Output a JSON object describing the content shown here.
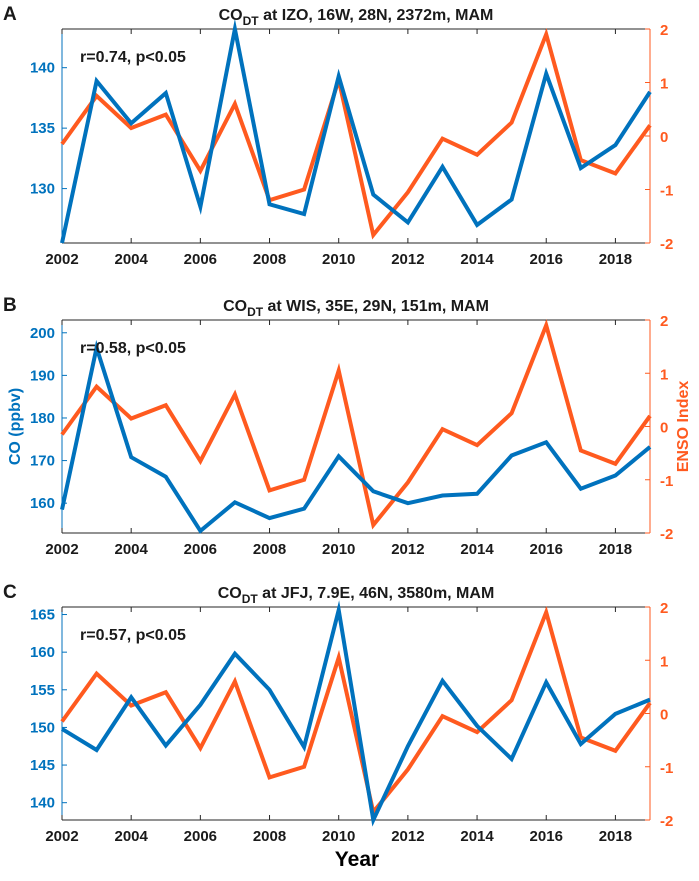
{
  "figure": {
    "xlabel": "Year",
    "left_axis_label": "CO (ppbv)",
    "right_axis_label": "ENSO Index",
    "colors": {
      "co": "#0072BD",
      "enso": "#FF5A1F",
      "text": "#1a1a1a",
      "axis": "#262626"
    }
  },
  "chart_data": [
    {
      "type": "line",
      "panel_letter": "A",
      "title_prefix": "CO",
      "title_sub": "DT",
      "title_suffix": " at IZO, 16W, 28N, 2372m, MAM",
      "annotation": "r=0.74, p<0.05",
      "xlim": [
        2002,
        2019
      ],
      "ylim_left": [
        125.5,
        143.2
      ],
      "ylim_right": [
        -2,
        2
      ],
      "x_ticks": [
        2002,
        2004,
        2006,
        2008,
        2010,
        2012,
        2014,
        2016,
        2018
      ],
      "left_ticks": [
        130,
        135,
        140
      ],
      "right_ticks": [
        -2,
        -1,
        0,
        1,
        2
      ],
      "x": [
        2002,
        2003,
        2004,
        2005,
        2006,
        2007,
        2008,
        2009,
        2010,
        2011,
        2012,
        2013,
        2014,
        2015,
        2016,
        2017,
        2018,
        2019
      ],
      "series": [
        {
          "name": "CO",
          "axis": "left",
          "values": [
            125.5,
            138.9,
            135.4,
            137.9,
            128.5,
            143.2,
            128.7,
            127.9,
            139.3,
            129.5,
            127.2,
            131.8,
            127.0,
            129.1,
            139.5,
            131.7,
            133.6,
            138.0
          ]
        },
        {
          "name": "ENSO",
          "axis": "right",
          "values": [
            -0.15,
            0.75,
            0.15,
            0.4,
            -0.65,
            0.6,
            -1.2,
            -1.0,
            1.05,
            -1.85,
            -1.05,
            -0.05,
            -0.35,
            0.25,
            1.9,
            -0.45,
            -0.7,
            0.2
          ]
        }
      ]
    },
    {
      "type": "line",
      "panel_letter": "B",
      "title_prefix": "CO",
      "title_sub": "DT",
      "title_suffix": " at WIS, 35E, 29N, 151m, MAM",
      "annotation": "r=0.58, p<0.05",
      "xlim": [
        2002,
        2019
      ],
      "ylim_left": [
        153,
        203
      ],
      "ylim_right": [
        -2,
        2
      ],
      "x_ticks": [
        2002,
        2004,
        2006,
        2008,
        2010,
        2012,
        2014,
        2016,
        2018
      ],
      "left_ticks": [
        160,
        170,
        180,
        190,
        200
      ],
      "right_ticks": [
        -2,
        -1,
        0,
        1,
        2
      ],
      "x": [
        2002,
        2003,
        2004,
        2005,
        2006,
        2007,
        2008,
        2009,
        2010,
        2011,
        2012,
        2013,
        2014,
        2015,
        2016,
        2017,
        2018,
        2019
      ],
      "series": [
        {
          "name": "CO",
          "axis": "left",
          "values": [
            158.5,
            196.5,
            170.8,
            166.2,
            153.5,
            160.2,
            156.5,
            158.7,
            171.0,
            162.8,
            160.0,
            161.8,
            162.2,
            171.2,
            174.3,
            163.4,
            166.5,
            173.2
          ]
        },
        {
          "name": "ENSO",
          "axis": "right",
          "values": [
            -0.15,
            0.75,
            0.15,
            0.4,
            -0.65,
            0.6,
            -1.2,
            -1.0,
            1.05,
            -1.85,
            -1.05,
            -0.05,
            -0.35,
            0.25,
            1.9,
            -0.45,
            -0.7,
            0.2
          ]
        }
      ]
    },
    {
      "type": "line",
      "panel_letter": "C",
      "title_prefix": "CO",
      "title_sub": "DT",
      "title_suffix": " at JFJ, 7.9E, 46N, 3580m, MAM",
      "annotation": "r=0.57, p<0.05",
      "xlim": [
        2002,
        2019
      ],
      "ylim_left": [
        137.7,
        166
      ],
      "ylim_right": [
        -2,
        2
      ],
      "x_ticks": [
        2002,
        2004,
        2006,
        2008,
        2010,
        2012,
        2014,
        2016,
        2018
      ],
      "left_ticks": [
        140,
        145,
        150,
        155,
        160,
        165
      ],
      "right_ticks": [
        -2,
        -1,
        0,
        1,
        2
      ],
      "x": [
        2002,
        2003,
        2004,
        2005,
        2006,
        2007,
        2008,
        2009,
        2010,
        2011,
        2012,
        2013,
        2014,
        2015,
        2016,
        2017,
        2018,
        2019
      ],
      "series": [
        {
          "name": "CO",
          "axis": "left",
          "values": [
            149.8,
            147.0,
            154.0,
            147.6,
            153.0,
            159.8,
            155.0,
            147.4,
            165.6,
            137.7,
            147.5,
            156.2,
            150.2,
            145.8,
            156.0,
            147.8,
            151.8,
            153.7
          ]
        },
        {
          "name": "ENSO",
          "axis": "right",
          "values": [
            -0.15,
            0.75,
            0.15,
            0.4,
            -0.65,
            0.6,
            -1.2,
            -1.0,
            1.05,
            -1.85,
            -1.05,
            -0.05,
            -0.35,
            0.25,
            1.9,
            -0.45,
            -0.7,
            0.2
          ]
        }
      ]
    }
  ]
}
